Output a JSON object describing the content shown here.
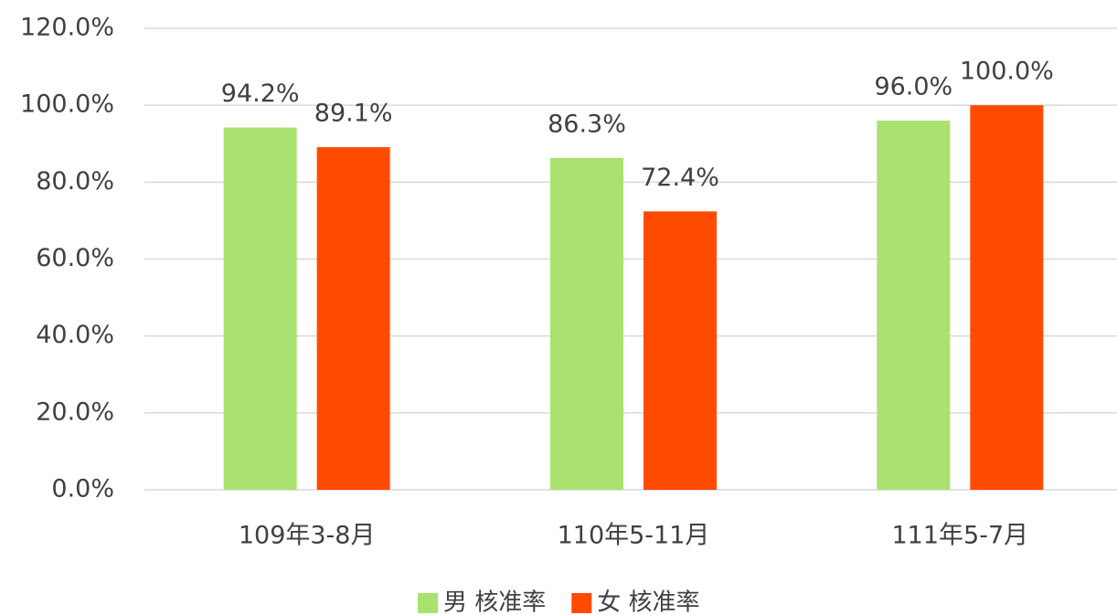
{
  "chart_data": {
    "type": "bar",
    "categories": [
      "109年3-8月",
      "110年5-11月",
      "111年5-7月"
    ],
    "series": [
      {
        "name": "男 核准率",
        "color": "#a9e26f",
        "values": [
          94.2,
          86.3,
          96.0
        ],
        "value_labels": [
          "94.2%",
          "86.3%",
          "96.0%"
        ]
      },
      {
        "name": "女 核准率",
        "color": "#ff4b00",
        "values": [
          89.1,
          72.4,
          100.0
        ],
        "value_labels": [
          "89.1%",
          "72.4%",
          "100.0%"
        ]
      }
    ],
    "ylim": [
      0,
      120
    ],
    "yticks": [
      {
        "value": 0,
        "label": "0.0%"
      },
      {
        "value": 20,
        "label": "20.0%"
      },
      {
        "value": 40,
        "label": "40.0%"
      },
      {
        "value": 60,
        "label": "60.0%"
      },
      {
        "value": 80,
        "label": "80.0%"
      },
      {
        "value": 100,
        "label": "100.0%"
      },
      {
        "value": 120,
        "label": "120.0%"
      }
    ],
    "grid": true,
    "legend": "bottom"
  }
}
